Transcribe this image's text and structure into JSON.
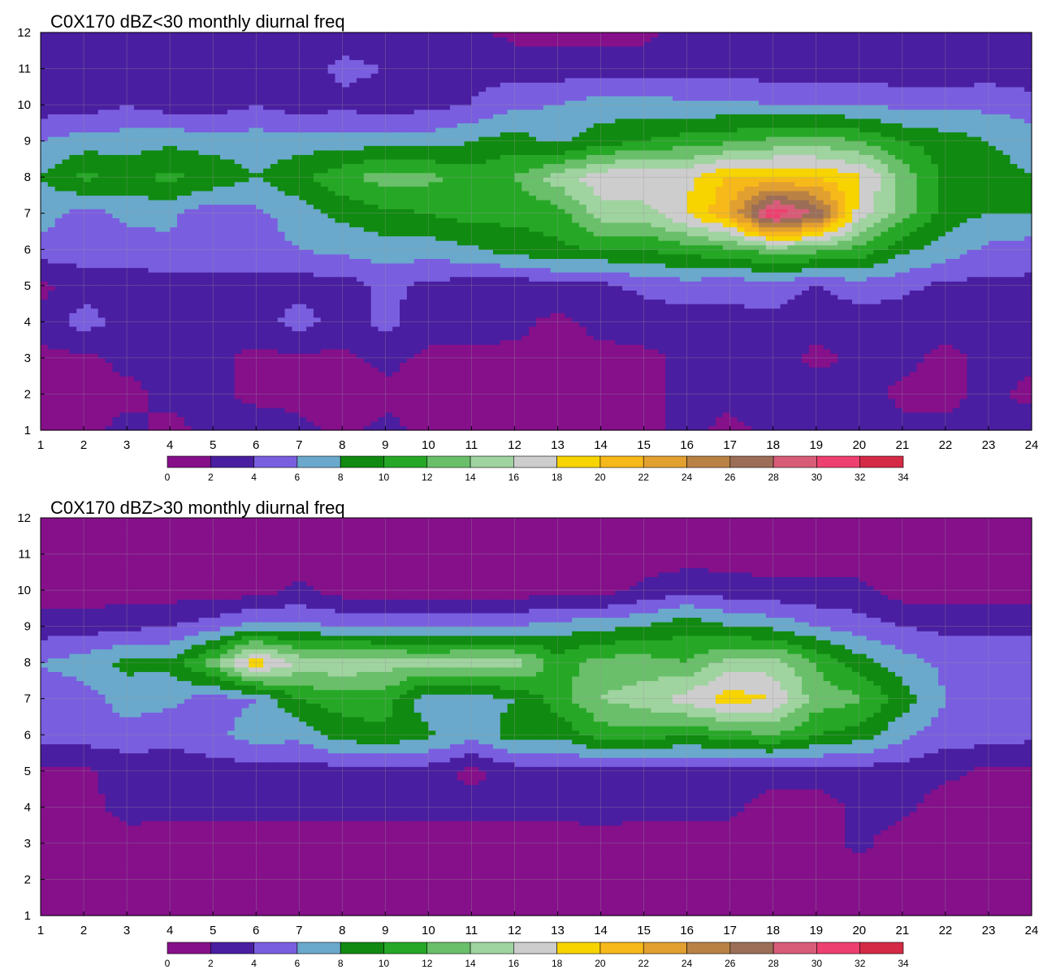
{
  "colorbar": {
    "levels": [
      0,
      2,
      4,
      6,
      8,
      10,
      12,
      14,
      16,
      18,
      20,
      22,
      24,
      26,
      28,
      30,
      32,
      34
    ],
    "colors": [
      "#85108a",
      "#4a1ea0",
      "#7a5ee0",
      "#6aa9cc",
      "#108a10",
      "#26a826",
      "#6abf6a",
      "#9fd39f",
      "#cdcdcd",
      "#f7d400",
      "#f7b81a",
      "#e2a030",
      "#b98244",
      "#9c6e58",
      "#d85c78",
      "#ee4070",
      "#d42a46"
    ],
    "contour_line_color": "#f0a21a"
  },
  "chart_data": [
    {
      "type": "heatmap",
      "title": "C0X170 dBZ<30 monthly diurnal freq",
      "xlim": [
        1,
        24
      ],
      "ylim": [
        1,
        12
      ],
      "xticks": [
        "1",
        "2",
        "3",
        "4",
        "5",
        "6",
        "7",
        "8",
        "9",
        "10",
        "11",
        "12",
        "13",
        "14",
        "15",
        "16",
        "17",
        "18",
        "19",
        "20",
        "21",
        "22",
        "23",
        "24"
      ],
      "yticks": [
        "1",
        "2",
        "3",
        "4",
        "5",
        "6",
        "7",
        "8",
        "9",
        "10",
        "11",
        "12"
      ],
      "grid": true,
      "colorbar": "bottom",
      "x": [
        1,
        2,
        3,
        4,
        5,
        6,
        7,
        8,
        9,
        10,
        11,
        12,
        13,
        14,
        15,
        16,
        17,
        18,
        19,
        20,
        21,
        22,
        23,
        24
      ],
      "y": [
        1,
        2,
        3,
        4,
        5,
        6,
        7,
        8,
        9,
        10,
        11,
        12
      ],
      "z": [
        [
          1.5,
          1.5,
          2.5,
          1.5,
          2.5,
          3,
          2.5,
          1.5,
          2.5,
          1.5,
          1.5,
          1.5,
          1.5,
          1.5,
          1.5,
          2.5,
          1.5,
          2.5,
          3,
          3,
          2.5,
          2.5,
          2.5,
          3
        ],
        [
          1.5,
          1.5,
          1.5,
          2.5,
          2.5,
          1.5,
          1.5,
          1,
          1.5,
          1.5,
          1.5,
          1.5,
          1.5,
          1.5,
          1.5,
          2.5,
          2.5,
          3,
          3,
          3,
          1.5,
          1.5,
          2.5,
          1.5
        ],
        [
          1.5,
          1.5,
          2.5,
          2.5,
          2.5,
          1.5,
          1.5,
          1.5,
          2.5,
          1.5,
          1.5,
          1.5,
          1.5,
          1.5,
          1.5,
          2.5,
          2.5,
          3,
          1.5,
          2.5,
          2.5,
          1.5,
          2.5,
          2.5
        ],
        [
          2.5,
          5,
          3,
          3,
          3,
          3,
          5,
          3,
          4.5,
          3,
          3,
          2.5,
          1.5,
          2.5,
          3,
          3,
          3.5,
          3.5,
          2.5,
          3,
          3,
          2.5,
          3,
          3.5
        ],
        [
          1.5,
          3,
          3,
          3,
          3.5,
          3.5,
          3,
          3,
          4.5,
          3.5,
          3,
          2.5,
          3.5,
          3.5,
          4.5,
          5,
          4.5,
          5,
          4,
          5,
          4.5,
          3.5,
          3.5,
          3.5
        ],
        [
          5,
          5,
          5,
          5.5,
          5,
          5,
          6,
          6.5,
          7,
          7,
          7.5,
          9,
          9.5,
          10,
          10,
          11,
          11.5,
          13,
          12.5,
          11.5,
          8.5,
          7,
          5.5,
          5
        ],
        [
          7,
          5,
          6.5,
          6.5,
          4.5,
          5.5,
          7,
          8.5,
          9.5,
          10,
          11,
          10.5,
          11,
          15,
          15,
          18,
          22,
          32,
          28,
          17,
          13,
          9,
          8,
          8
        ],
        [
          8,
          10.5,
          9.5,
          10.5,
          9.5,
          8,
          9.5,
          11.5,
          13,
          12.5,
          11,
          12,
          15,
          17.5,
          18,
          17.5,
          20.5,
          20.5,
          20,
          18.5,
          13.5,
          9.5,
          9,
          8
        ],
        [
          6,
          7,
          7,
          7.5,
          7,
          7,
          7,
          7,
          7,
          7,
          8,
          9,
          7.5,
          9,
          10,
          11,
          11.5,
          12.5,
          13,
          12,
          10,
          9,
          8,
          7
        ],
        [
          3,
          3,
          4,
          3,
          3,
          4,
          3,
          3.5,
          3,
          3.5,
          4,
          5.5,
          6,
          7,
          7,
          6.5,
          6.5,
          6,
          6,
          6,
          5.5,
          5.5,
          5.5,
          5
        ],
        [
          3,
          3,
          3,
          3,
          3,
          3,
          3,
          4.5,
          4,
          4,
          3.5,
          3,
          3,
          3,
          3,
          3,
          3,
          3,
          3,
          3,
          2.5,
          2.5,
          3,
          2.5
        ],
        [
          3,
          3,
          3,
          3,
          3,
          3,
          3,
          3,
          3,
          3,
          2.5,
          1.5,
          1.5,
          1.5,
          1.5,
          3,
          3,
          3,
          3,
          3,
          2.5,
          2,
          2,
          2
        ]
      ]
    },
    {
      "type": "heatmap",
      "title": "C0X170 dBZ>30 monthly diurnal freq",
      "xlim": [
        1,
        24
      ],
      "ylim": [
        1,
        12
      ],
      "xticks": [
        "1",
        "2",
        "3",
        "4",
        "5",
        "6",
        "7",
        "8",
        "9",
        "10",
        "11",
        "12",
        "13",
        "14",
        "15",
        "16",
        "17",
        "18",
        "19",
        "20",
        "21",
        "22",
        "23",
        "24"
      ],
      "yticks": [
        "1",
        "2",
        "3",
        "4",
        "5",
        "6",
        "7",
        "8",
        "9",
        "10",
        "11",
        "12"
      ],
      "grid": true,
      "colorbar": "bottom",
      "x": [
        1,
        2,
        3,
        4,
        5,
        6,
        7,
        8,
        9,
        10,
        11,
        12,
        13,
        14,
        15,
        16,
        17,
        18,
        19,
        20,
        21,
        22,
        23,
        24
      ],
      "y": [
        1,
        2,
        3,
        4,
        5,
        6,
        7,
        8,
        9,
        10,
        11,
        12
      ],
      "z": [
        [
          1,
          1,
          1,
          1,
          1,
          1,
          1,
          1,
          1,
          1,
          1,
          1,
          1,
          1,
          1,
          1,
          1,
          1,
          1,
          1,
          1,
          1,
          1,
          1
        ],
        [
          1,
          1,
          1,
          1,
          1,
          1,
          1,
          1,
          1,
          1,
          1,
          1,
          1,
          1,
          1,
          1,
          1,
          1,
          1,
          1,
          1,
          1,
          1,
          1
        ],
        [
          1,
          1,
          1.5,
          1,
          1,
          1,
          1,
          1,
          1,
          1,
          1,
          1,
          1,
          1,
          1,
          1,
          1,
          1,
          1,
          2.5,
          1,
          1,
          1,
          1
        ],
        [
          1,
          1.5,
          2.5,
          2.5,
          2.5,
          2.5,
          2.5,
          2.5,
          2.5,
          2.5,
          2.5,
          2.5,
          2.5,
          3,
          2.5,
          2.5,
          2.5,
          1,
          1,
          2.5,
          2.5,
          1,
          1,
          1
        ],
        [
          1.5,
          1.5,
          3,
          3,
          3,
          3,
          3,
          3,
          3,
          3,
          1.5,
          3,
          3,
          3,
          3,
          3,
          3,
          3,
          3,
          3,
          3,
          2.5,
          1.5,
          1.5
        ],
        [
          5,
          5,
          5,
          4.5,
          5.5,
          7,
          6.5,
          9,
          9.5,
          8.5,
          6.5,
          9,
          8.5,
          11,
          11,
          10,
          11,
          12,
          10,
          9,
          6.5,
          5,
          5,
          4.5
        ],
        [
          5,
          5,
          7,
          6.5,
          5,
          6,
          10,
          11,
          11,
          6.5,
          7,
          8,
          11,
          14,
          15,
          17,
          19,
          18,
          13,
          12.5,
          9,
          6,
          6,
          6
        ],
        [
          6,
          7,
          8.5,
          8.5,
          13,
          19.5,
          15.5,
          15.5,
          15,
          14.5,
          15,
          15,
          11,
          13,
          13,
          12,
          15,
          15,
          12,
          9,
          7,
          5.5,
          5.5,
          5.5
        ],
        [
          3,
          3,
          3.5,
          4,
          5,
          7,
          6.5,
          6,
          6,
          6,
          6,
          6,
          7,
          7.5,
          8,
          9.5,
          8,
          7.5,
          6,
          5,
          4,
          3.5,
          3.5,
          3.5
        ],
        [
          1,
          1,
          1,
          1,
          1,
          1,
          2.5,
          1,
          1,
          1,
          1,
          1,
          1,
          1,
          2.5,
          3.5,
          3,
          2.5,
          2.5,
          2.5,
          1,
          1,
          1,
          1
        ],
        [
          1,
          1,
          1,
          1,
          1,
          1,
          1,
          1,
          1,
          1,
          1,
          1,
          1,
          1,
          1,
          1,
          1,
          1,
          1,
          1,
          1,
          1,
          1,
          1
        ],
        [
          1,
          1,
          1,
          1,
          1,
          1,
          1,
          1,
          1,
          1,
          1,
          1,
          1,
          1,
          1,
          1,
          1,
          1,
          1,
          1,
          1,
          1,
          1,
          1
        ]
      ]
    }
  ]
}
